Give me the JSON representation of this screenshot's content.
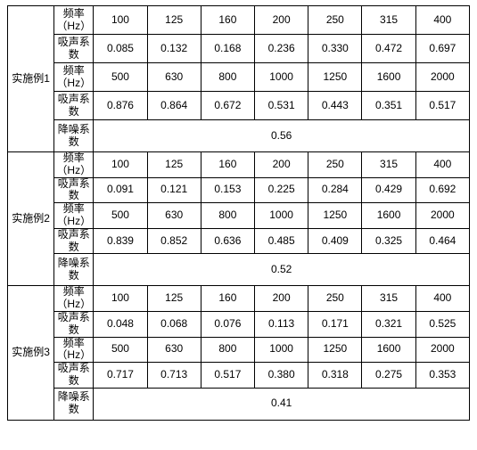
{
  "colors": {
    "border": "#000000",
    "text": "#000000",
    "background": "#ffffff"
  },
  "labels": {
    "freq": "频率（Hz）",
    "abs": "吸声系数",
    "nr": "降噪系数"
  },
  "examples": [
    {
      "name": "实施例1",
      "freq1": [
        "100",
        "125",
        "160",
        "200",
        "250",
        "315",
        "400"
      ],
      "abs1": [
        "0.085",
        "0.132",
        "0.168",
        "0.236",
        "0.330",
        "0.472",
        "0.697"
      ],
      "freq2": [
        "500",
        "630",
        "800",
        "1000",
        "1250",
        "1600",
        "2000"
      ],
      "abs2": [
        "0.876",
        "0.864",
        "0.672",
        "0.531",
        "0.443",
        "0.351",
        "0.517"
      ],
      "nr": "0.56",
      "row_height_class": "rowh",
      "nr_height_class": "rowh-nr"
    },
    {
      "name": "实施例2",
      "freq1": [
        "100",
        "125",
        "160",
        "200",
        "250",
        "315",
        "400"
      ],
      "abs1": [
        "0.091",
        "0.121",
        "0.153",
        "0.225",
        "0.284",
        "0.429",
        "0.692"
      ],
      "freq2": [
        "500",
        "630",
        "800",
        "1000",
        "1250",
        "1600",
        "2000"
      ],
      "abs2": [
        "0.839",
        "0.852",
        "0.636",
        "0.485",
        "0.409",
        "0.325",
        "0.464"
      ],
      "nr": "0.52",
      "row_height_class": "rowh-sm",
      "nr_height_class": "rowh-nr"
    },
    {
      "name": "实施例3",
      "freq1": [
        "100",
        "125",
        "160",
        "200",
        "250",
        "315",
        "400"
      ],
      "abs1": [
        "0.048",
        "0.068",
        "0.076",
        "0.113",
        "0.171",
        "0.321",
        "0.525"
      ],
      "freq2": [
        "500",
        "630",
        "800",
        "1000",
        "1250",
        "1600",
        "2000"
      ],
      "abs2": [
        "0.717",
        "0.713",
        "0.517",
        "0.380",
        "0.318",
        "0.275",
        "0.353"
      ],
      "nr": "0.41",
      "row_height_class": "rowh-sm",
      "nr_height_class": "rowh-nr"
    }
  ]
}
